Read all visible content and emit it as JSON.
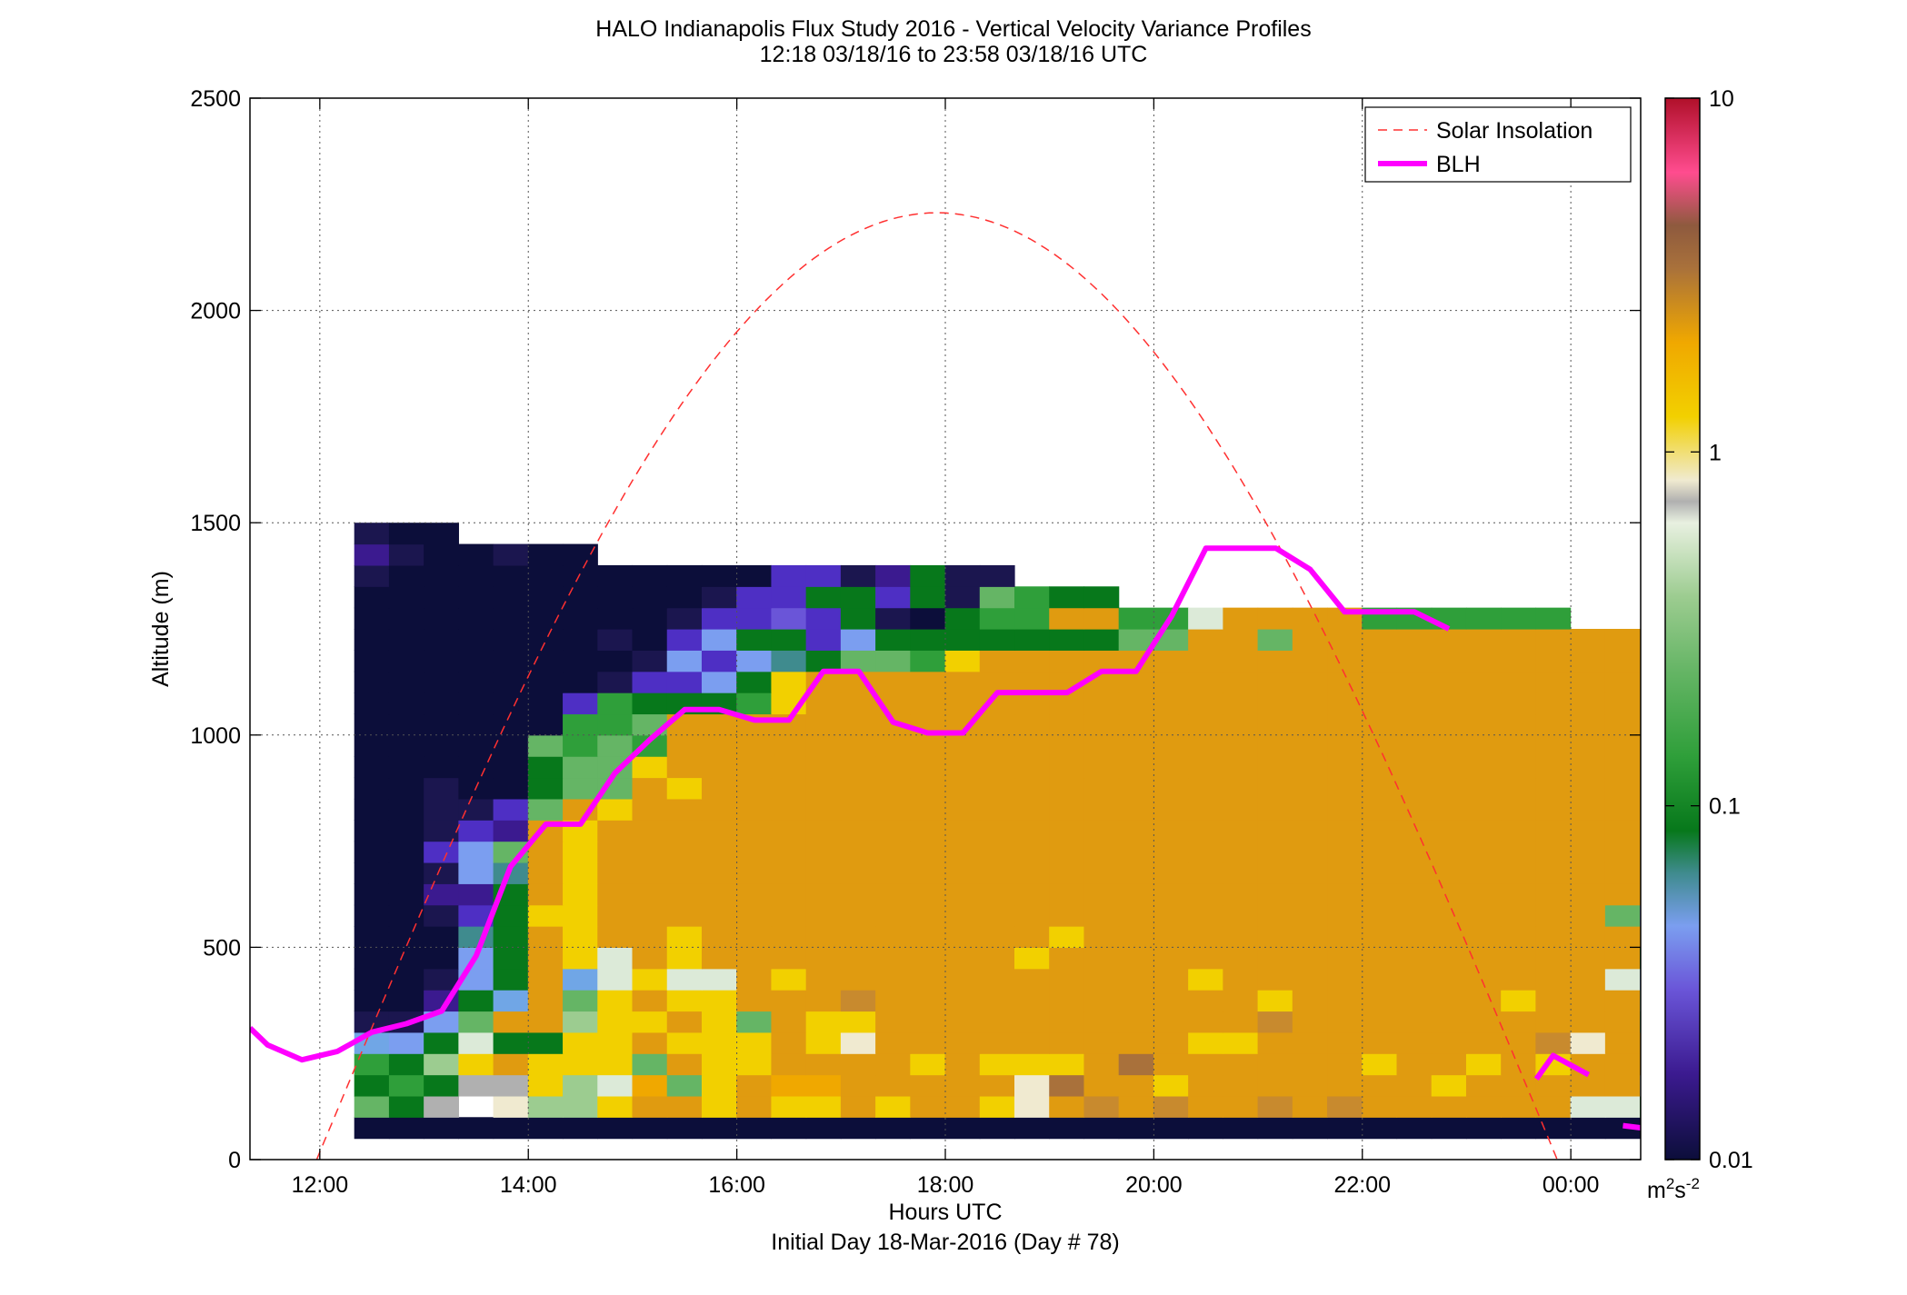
{
  "chart_data": {
    "type": "heatmap",
    "title": "HALO Indianapolis Flux Study 2016 - Vertical Velocity Variance Profiles",
    "subtitle": "12:18 03/18/16 to 23:58 03/18/16  UTC",
    "xlabel": "Hours UTC",
    "xlabel2": "Initial Day 18-Mar-2016 (Day # 78)",
    "ylabel": "Altitude (m)",
    "xlim": [
      11.33,
      24.67
    ],
    "ylim": [
      0,
      2500
    ],
    "x_ticks": [
      12,
      14,
      16,
      18,
      20,
      22,
      24
    ],
    "x_tick_labels": [
      "12:00",
      "14:00",
      "16:00",
      "18:00",
      "20:00",
      "22:00",
      "00:00"
    ],
    "y_ticks": [
      0,
      500,
      1000,
      1500,
      2000,
      2500
    ],
    "y_tick_labels": [
      "0",
      "500",
      "1000",
      "1500",
      "2000",
      "2500"
    ],
    "grid": true,
    "legend": {
      "placement": "top-right",
      "entries": [
        {
          "name": "Solar Insolation",
          "style": "dashed",
          "color": "#ff3030"
        },
        {
          "name": "BLH",
          "style": "solid",
          "color": "#ff00ff"
        }
      ]
    },
    "colorbar": {
      "scale": "log",
      "range": [
        0.01,
        10
      ],
      "tick_labels": [
        "10",
        "1",
        "0.1",
        "0.01"
      ],
      "unit_base": "m",
      "unit_exp1": "2",
      "unit_mid": "s",
      "unit_exp2": "-2"
    },
    "heatmap": {
      "x0": 12.33,
      "dx": 0.3333,
      "y0": 50,
      "dy": 50,
      "key": {
        "N": "#0c0e3a",
        "n": "#1b164f",
        "u": "#3b1a8f",
        "v": "#4e2fc4",
        "p": "#6a55d8",
        "b": "#7b9ef0",
        "c": "#70a6e6",
        "t": "#3f8b8e",
        "k": "#07781b",
        "G": "#0f8f20",
        "g": "#2f9f3a",
        "m": "#65b565",
        "l": "#9ccc90",
        "w": "#dcead8",
        "a": "#b0b0b0",
        "h": "#f0ead0",
        "y": "#f2d000",
        "Y": "#f1c816",
        "o": "#f0a800",
        "O": "#e09b10",
        "d": "#c88a2e",
        "r": "#a9713b",
        "R": "#8e5a3e",
        "x": "#8a4a4a",
        "X": "#b53e55"
      },
      "rows": [
        "NNNNNNNNNNNNNNNNNNNNNNNNNNNNNNNNNNNNN",
        "mkaehllyOOyOyyOyOOyhOdOdOOdOdOOOOOOwwgm",
        "kgkaaylwomyOooOOOOOhrOOyOOOOOOOyOOOOOwkg",
        "gklyOyyymOyyOOOOyOyyyOrOOOOOOyOOyOyOOOlwg",
        "cbkwkkyyOyyyOyhOOOOOOOOOyyOOOOOOOOdhOOOlkg",
        "nnbmOOlyyOymOyyOOOOOOOOOOOdOOOOOOOOOOmkg",
        "NNukcOmyOyyOOOdOOOOOOOOOOOyOOOOOOyOOOlkg",
        "NNnbkOcwywwOyOOOOOOOOOOOyOOOOOOOOOOOwcu",
        "NNNbkOywOyOOOOOOOOOyOOOOOOOOOOOOOOOOOkcg",
        "NNNtkOyOOyOOOOOOOOOOyOOOOOOOOOOOOOOOOOgl",
        "NNnvkyyOOOOOOOOOOOOOOOOOOOOOOOOOOOOOmbg",
        "NNuukOyOOOOOOOOOOOOOOOOOOOOOOOOOOOOOOOkGk",
        "NNnbtOyOOOOOOOOOOOOOOOOOOOOOOOOOOOOOOOkmk",
        "NNvbmOyOOOOOOOOOOOOOOOOOOOOOOOOOOOOOOOkml",
        "NNnvuOyOOOOOOOOOOOOOOOOOOOOOOOOOOOOOOOtmg",
        "NNnnvmOyOOOOOOOOOOOOOOOOOOOOOOOOOOOOOOgmk",
        "NNnNNkmmOyOOOOOOOOOOOOOOOOOOOOOOOOOOOOkgk",
        "NNNNNkmmyOOOOOOOOOOOOOOOOOOOOOOOOOOOOOOGk",
        "NNNNNmgmgOOOOOOOOOOOOOOOOOOOOOOOOOOOOOOGk",
        "NNNNNNggmOOOOOOOOOOOOOOOOOOOOOOOOOOOOOOkc",
        "NNNNNNvgkkkgyOOOOOOOOOOOOOOOOOOOOOOOOOOkg",
        "NNNNNNNnvvbkyOOOOOOOOOOOOOOOOOOOOOOOOOOkNn",
        "NNNNNNNNnbvbtkmmgyOOOOOOOOOOOOOOOOOOOOOk",
        "NNNNNNNnNvbkkvbkkkkkkkmmOOmOOOOOOOOOOOg",
        "NNNNNNNNNnvvpvknNkggOOggwOOOOgggggg",
        "NNNNNNNNNNnvvkkvknmgkk",
        "nNNNNNNNNNNNvvnuknn",
        "unNNnNN",
        "nNN"
      ]
    },
    "blh_series": {
      "name": "BLH",
      "x": [
        11.33,
        11.5,
        11.83,
        12.17,
        12.5,
        12.83,
        13.17,
        13.5,
        13.83,
        14.17,
        14.5,
        14.83,
        15.17,
        15.5,
        15.83,
        16.17,
        16.5,
        16.83,
        17.17,
        17.5,
        17.83,
        18.17,
        18.5,
        18.83,
        19.17,
        19.5,
        19.83,
        20.17,
        20.5,
        20.83,
        21.17,
        21.5,
        21.83,
        22.17,
        22.5,
        22.83
      ],
      "y": [
        310,
        270,
        235,
        255,
        300,
        320,
        350,
        480,
        690,
        790,
        790,
        910,
        990,
        1060,
        1060,
        1035,
        1035,
        1150,
        1150,
        1030,
        1005,
        1005,
        1100,
        1100,
        1100,
        1150,
        1150,
        1280,
        1440,
        1440,
        1440,
        1390,
        1290,
        1290,
        1290,
        1250
      ]
    },
    "blh_series_tail": {
      "x": [
        23.67,
        23.83,
        24.17
      ],
      "y": [
        190,
        245,
        200
      ]
    },
    "blh_series_edge": {
      "x": [
        24.5,
        24.67
      ],
      "y": [
        80,
        75
      ]
    },
    "solar_insolation": {
      "name": "Solar Insolation",
      "t_start": 11.97,
      "t_end": 23.87,
      "peak_alt": 2230
    }
  }
}
